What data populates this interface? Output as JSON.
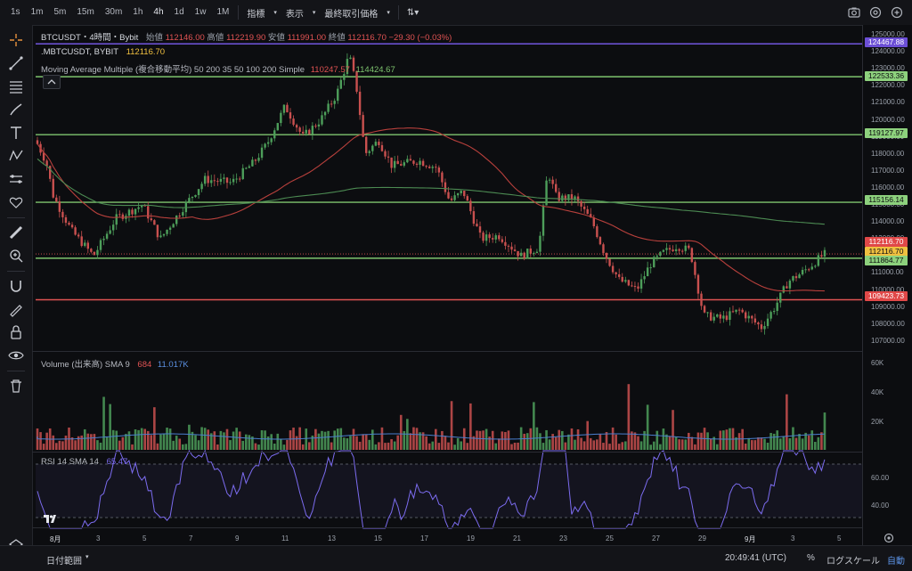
{
  "toolbar": {
    "timeframes": [
      "1s",
      "1m",
      "5m",
      "15m",
      "30m",
      "1h",
      "4h",
      "1d",
      "1w",
      "1M"
    ],
    "active_timeframe": "4h",
    "menu_indicators": "指標",
    "menu_display": "表示",
    "menu_price": "最終取引価格"
  },
  "legend": {
    "symbol_line": "BTCUSDT・4時間・Bybit",
    "open_label": "始値",
    "open_value": "112146.00",
    "high_label": "高値",
    "high_value": "112219.90",
    "low_label": "安値",
    "low_value": "111991.00",
    "close_label": "終値",
    "close_value": "112116.70",
    "change": "−29.30 (−0.03%)",
    "compare_symbol": ".MBTCUSDT, BYBIT",
    "compare_value": "112116.70",
    "ma_text": "Moving Average Multiple (複合移動平均) 50 200 35 50 100 200 Simple",
    "ma_value_1": "110247.57",
    "ma_value_2": "114424.67"
  },
  "volume": {
    "label": "Volume (出来高) SMA 9",
    "v1": "684",
    "v2": "11.017K"
  },
  "rsi": {
    "label": "RSI 14 SMA 14",
    "value": "65.47"
  },
  "price_axis": {
    "ticks": [
      "125000.00",
      "124000.00",
      "123000.00",
      "122000.00",
      "121000.00",
      "120000.00",
      "119000.00",
      "118000.00",
      "117000.00",
      "116000.00",
      "115000.00",
      "114000.00",
      "113000.00",
      "112000.00",
      "111000.00",
      "110000.00",
      "109000.00",
      "108000.00",
      "107000.00"
    ],
    "labels": [
      {
        "text": "124467.88",
        "bg": "#6c4fd6",
        "fg": "#ffffff"
      },
      {
        "text": "122533.36",
        "bg": "#8dd17d",
        "fg": "#0c0d10"
      },
      {
        "text": "119127.97",
        "bg": "#8dd17d",
        "fg": "#0c0d10"
      },
      {
        "text": "115156.14",
        "bg": "#8dd17d",
        "fg": "#0c0d10"
      },
      {
        "text": "112116.70",
        "bg": "#e04848",
        "fg": "#ffffff"
      },
      {
        "text": "112116.70",
        "bg": "#f0c040",
        "fg": "#0c0d10"
      },
      {
        "text": "111864.77",
        "bg": "#8dd17d",
        "fg": "#0c0d10"
      },
      {
        "text": "109423.73",
        "bg": "#e04848",
        "fg": "#ffffff"
      }
    ]
  },
  "volume_axis": [
    "60K",
    "40K",
    "20K"
  ],
  "rsi_axis": [
    "60.00",
    "40.00"
  ],
  "time_axis": [
    "8月",
    "3",
    "5",
    "7",
    "9",
    "11",
    "13",
    "15",
    "17",
    "19",
    "21",
    "23",
    "25",
    "27",
    "29",
    "9月",
    "3",
    "5"
  ],
  "bottom": {
    "range": "日付範囲",
    "clock": "20:49:41 (UTC)",
    "percent": "%",
    "log": "ログスケール",
    "auto": "自動"
  },
  "colors": {
    "up": "#4d9e5a",
    "down": "#c9504f",
    "hline_green": "#7ec46e",
    "hline_red": "#e05353",
    "hline_purple": "#7a5cf0",
    "ma_red": "#b8403c",
    "ma_green": "#4c8a52",
    "rsi": "#7c6cf0"
  }
}
